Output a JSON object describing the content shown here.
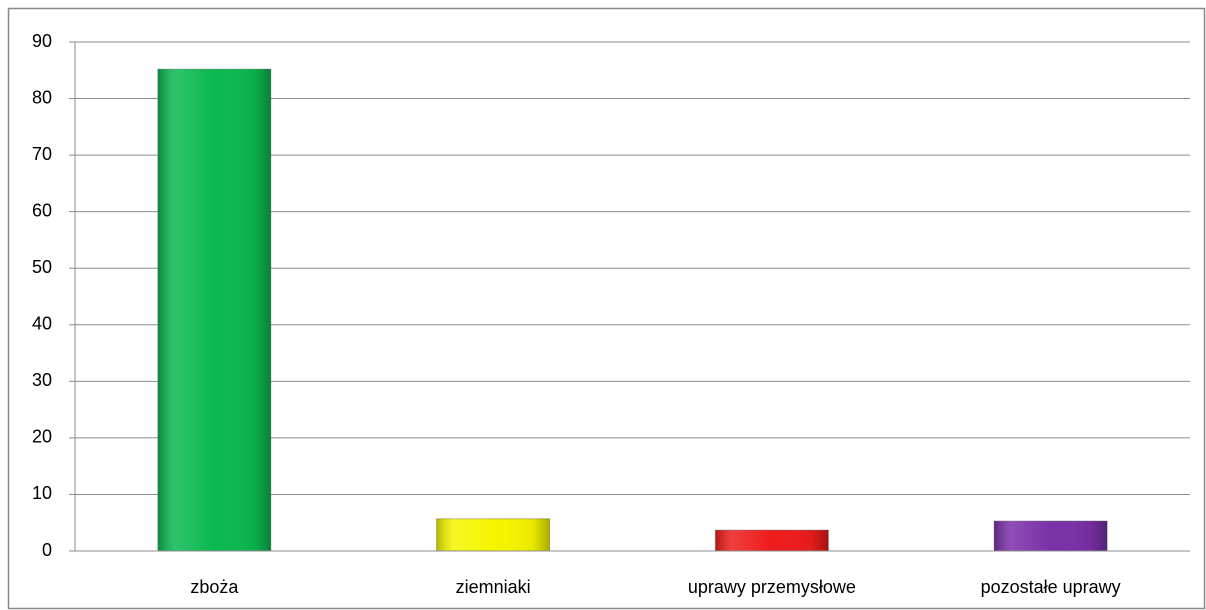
{
  "chart_data": {
    "type": "bar",
    "categories": [
      "zboża",
      "ziemniaki",
      "uprawy przemysłowe",
      "pozostałe uprawy"
    ],
    "values": [
      85.2,
      5.7,
      3.7,
      5.3
    ],
    "colors": [
      "#0bb850",
      "#f5f500",
      "#ee1c1c",
      "#7a30a8"
    ],
    "ylim": [
      0,
      90
    ],
    "yticks": [
      0,
      10,
      20,
      30,
      40,
      50,
      60,
      70,
      80,
      90
    ],
    "grid": true
  }
}
